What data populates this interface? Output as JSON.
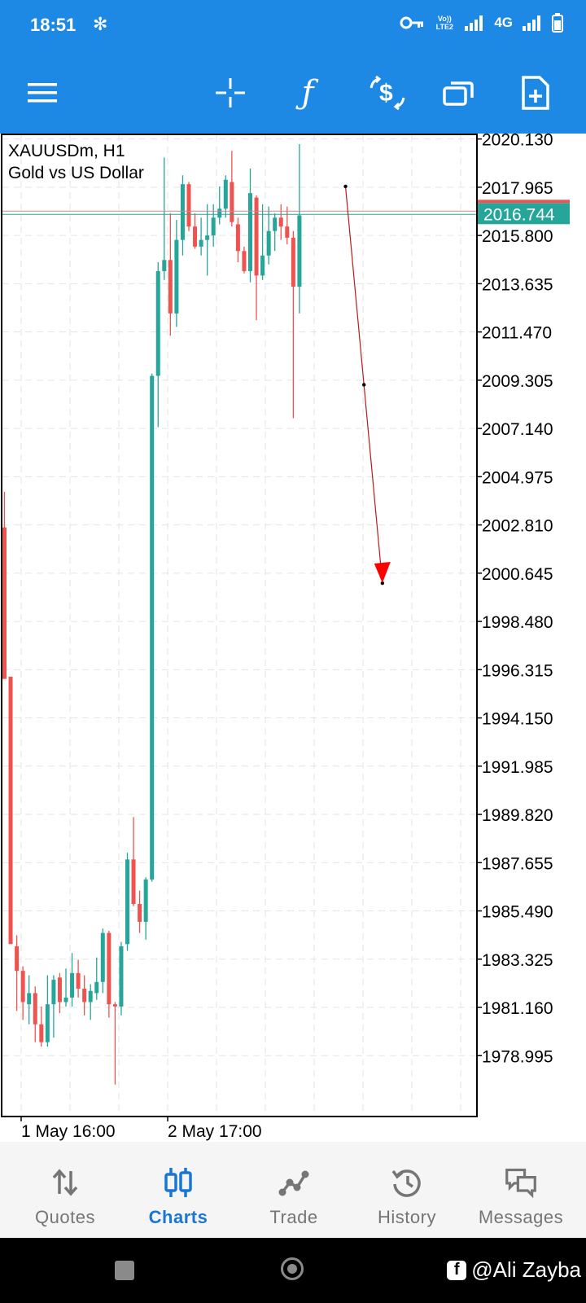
{
  "status_bar": {
    "time": "18:51",
    "network": "4G",
    "volte": "Vo)) LTE2",
    "icons": [
      "settings-icon",
      "key-icon",
      "signal-icon",
      "battery-icon"
    ]
  },
  "toolbar": {
    "icons": [
      "menu-icon",
      "crosshair-icon",
      "indicators-f-icon",
      "new-order-icon",
      "windows-icon",
      "add-object-icon"
    ]
  },
  "chart_data": {
    "type": "candlestick",
    "symbol": "XAUUSDm, H1",
    "description": "Gold vs US Dollar",
    "current_price": "2016.744",
    "y_ticks": [
      "2020.130",
      "2017.965",
      "2015.800",
      "2013.635",
      "2011.470",
      "2009.305",
      "2007.140",
      "2004.975",
      "2002.810",
      "2000.645",
      "1998.480",
      "1996.315",
      "1994.150",
      "1991.985",
      "1989.820",
      "1987.655",
      "1985.490",
      "1983.325",
      "1981.160",
      "1978.995"
    ],
    "ylim": [
      1976.3,
      2020.3
    ],
    "x_labels": [
      "1 May 16:00",
      "2 May 17:00"
    ],
    "bullish_color": "#26a69a",
    "bearish_color": "#ef5350",
    "candles": [
      {
        "o": 2002.7,
        "h": 2004.3,
        "l": 1996.0,
        "c": 1995.9
      },
      {
        "o": 1996.0,
        "h": 1996.0,
        "l": 1984.1,
        "c": 1984.0
      },
      {
        "o": 1983.9,
        "h": 1984.4,
        "l": 1981.0,
        "c": 1982.8
      },
      {
        "o": 1982.8,
        "h": 1983.0,
        "l": 1980.6,
        "c": 1981.4
      },
      {
        "o": 1981.3,
        "h": 1982.6,
        "l": 1980.4,
        "c": 1981.8
      },
      {
        "o": 1981.8,
        "h": 1982.1,
        "l": 1979.6,
        "c": 1980.4
      },
      {
        "o": 1980.4,
        "h": 1981.2,
        "l": 1979.4,
        "c": 1979.6
      },
      {
        "o": 1979.6,
        "h": 1982.6,
        "l": 1979.4,
        "c": 1981.3
      },
      {
        "o": 1981.3,
        "h": 1982.6,
        "l": 1979.8,
        "c": 1982.4
      },
      {
        "o": 1982.5,
        "h": 1982.7,
        "l": 1980.9,
        "c": 1981.4
      },
      {
        "o": 1981.4,
        "h": 1982.9,
        "l": 1981.2,
        "c": 1981.6
      },
      {
        "o": 1981.6,
        "h": 1983.6,
        "l": 1981.2,
        "c": 1982.7
      },
      {
        "o": 1982.7,
        "h": 1983.3,
        "l": 1981.6,
        "c": 1982.0
      },
      {
        "o": 1982.0,
        "h": 1982.6,
        "l": 1980.8,
        "c": 1981.4
      },
      {
        "o": 1981.4,
        "h": 1982.2,
        "l": 1980.6,
        "c": 1981.9
      },
      {
        "o": 1981.8,
        "h": 1983.4,
        "l": 1981.5,
        "c": 1982.3
      },
      {
        "o": 1982.3,
        "h": 1984.7,
        "l": 1981.8,
        "c": 1984.5
      },
      {
        "o": 1984.5,
        "h": 1984.6,
        "l": 1980.7,
        "c": 1981.3
      },
      {
        "o": 1981.3,
        "h": 1981.4,
        "l": 1977.7,
        "c": 1981.2
      },
      {
        "o": 1981.2,
        "h": 1984.1,
        "l": 1980.8,
        "c": 1983.9
      },
      {
        "o": 1984.0,
        "h": 1988.1,
        "l": 1983.7,
        "c": 1987.8
      },
      {
        "o": 1987.8,
        "h": 1989.7,
        "l": 1985.7,
        "c": 1985.8
      },
      {
        "o": 1985.8,
        "h": 1986.4,
        "l": 1984.5,
        "c": 1985.0
      },
      {
        "o": 1985.0,
        "h": 1987.0,
        "l": 1984.2,
        "c": 1986.9
      },
      {
        "o": 1986.9,
        "h": 2009.6,
        "l": 1986.8,
        "c": 2009.5
      },
      {
        "o": 2009.5,
        "h": 2014.6,
        "l": 2007.2,
        "c": 2014.2
      },
      {
        "o": 2014.2,
        "h": 2019.3,
        "l": 2013.8,
        "c": 2014.7
      },
      {
        "o": 2014.7,
        "h": 2016.8,
        "l": 2011.3,
        "c": 2012.3
      },
      {
        "o": 2012.3,
        "h": 2016.5,
        "l": 2011.7,
        "c": 2015.6
      },
      {
        "o": 2015.6,
        "h": 2018.5,
        "l": 2014.9,
        "c": 2018.1
      },
      {
        "o": 2018.1,
        "h": 2018.2,
        "l": 2016.0,
        "c": 2016.2
      },
      {
        "o": 2016.2,
        "h": 2016.8,
        "l": 2015.2,
        "c": 2015.3
      },
      {
        "o": 2015.3,
        "h": 2016.6,
        "l": 2014.9,
        "c": 2015.6
      },
      {
        "o": 2015.6,
        "h": 2017.2,
        "l": 2014.0,
        "c": 2015.8
      },
      {
        "o": 2015.8,
        "h": 2017.2,
        "l": 2015.3,
        "c": 2016.6
      },
      {
        "o": 2016.6,
        "h": 2018.0,
        "l": 2016.3,
        "c": 2017.0
      },
      {
        "o": 2017.0,
        "h": 2018.5,
        "l": 2016.6,
        "c": 2018.3
      },
      {
        "o": 2018.2,
        "h": 2019.6,
        "l": 2016.2,
        "c": 2016.4
      },
      {
        "o": 2016.3,
        "h": 2016.6,
        "l": 2014.6,
        "c": 2015.1
      },
      {
        "o": 2015.1,
        "h": 2015.3,
        "l": 2014.1,
        "c": 2014.2
      },
      {
        "o": 2014.2,
        "h": 2018.8,
        "l": 2013.7,
        "c": 2017.7
      },
      {
        "o": 2017.5,
        "h": 2017.6,
        "l": 2012.0,
        "c": 2014.0
      },
      {
        "o": 2014.0,
        "h": 2017.2,
        "l": 2013.8,
        "c": 2014.9
      },
      {
        "o": 2014.9,
        "h": 2017.1,
        "l": 2014.5,
        "c": 2016.0
      },
      {
        "o": 2016.0,
        "h": 2016.8,
        "l": 2015.1,
        "c": 2016.6
      },
      {
        "o": 2016.6,
        "h": 2017.2,
        "l": 2015.6,
        "c": 2016.2
      },
      {
        "o": 2016.2,
        "h": 2017.1,
        "l": 2015.4,
        "c": 2015.7
      },
      {
        "o": 2015.7,
        "h": 2016.0,
        "l": 2007.6,
        "c": 2013.5
      },
      {
        "o": 2013.5,
        "h": 2019.9,
        "l": 2012.3,
        "c": 2016.7
      }
    ],
    "trend_arrow": {
      "from_candle": 55.5,
      "from_price": 2018.0,
      "to_candle": 61.5,
      "to_price": 2000.2,
      "color": "#b71c1c"
    },
    "grid": true
  },
  "nav": {
    "items": [
      {
        "label": "Quotes",
        "icon": "quotes-arrows-icon",
        "active": false
      },
      {
        "label": "Charts",
        "icon": "charts-candles-icon",
        "active": true
      },
      {
        "label": "Trade",
        "icon": "trade-graph-icon",
        "active": false
      },
      {
        "label": "History",
        "icon": "history-clock-icon",
        "active": false
      },
      {
        "label": "Messages",
        "icon": "messages-chat-icon",
        "active": false
      }
    ]
  },
  "watermark": {
    "text": "@Ali Zayba",
    "icon": "facebook-icon"
  }
}
